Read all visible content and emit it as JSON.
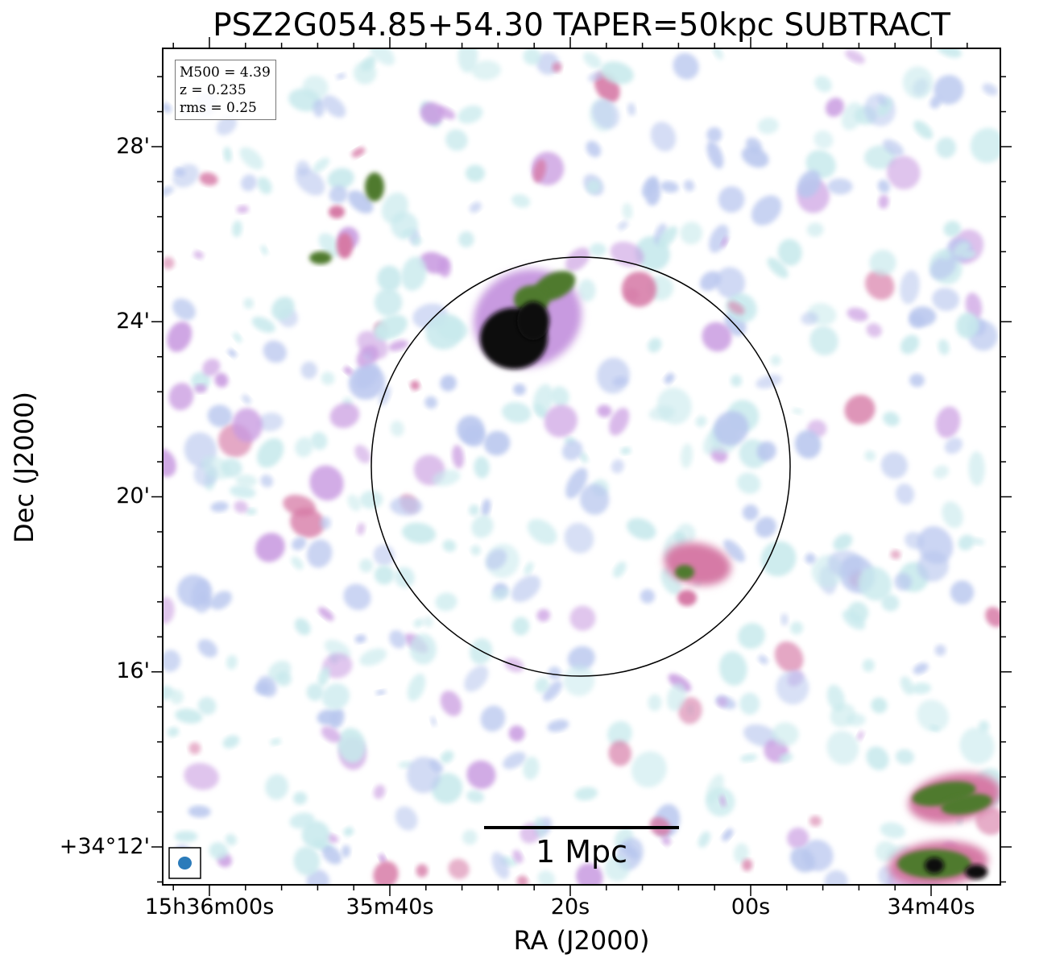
{
  "chart_data": {
    "type": "heatmap",
    "title": "PSZ2G054.85+54.30 TAPER=50kpc SUBTRACT",
    "xlabel": "RA (J2000)",
    "ylabel": "Dec (J2000)",
    "x_tick_labels": [
      "15h36m00s",
      "35m40s",
      "20s",
      "00s",
      "34m40s"
    ],
    "y_tick_labels": [
      "28'",
      "24'",
      "20'",
      "16'",
      "+34°12'"
    ],
    "annotation_box": [
      "M500 = 4.39",
      "z = 0.235",
      "rms = 0.25"
    ],
    "scale_bar_label": "1 Mpc",
    "colormap": [
      "#ffffff",
      "#c7e9ec",
      "#b8c6ee",
      "#c89ae0",
      "#d67aa6",
      "#4f7a2d",
      "#0a0a0a"
    ],
    "grid": false,
    "legend": "none",
    "overlays": [
      "r500 circle",
      "beam ellipse (bottom-left)",
      "scale bar"
    ],
    "sources": [
      {
        "name": "bright-compact-source",
        "ra": "15h35m25s",
        "dec": "+34°23.7'",
        "peak": "saturated"
      },
      {
        "name": "compact-source-south-east",
        "ra": "15h35m08s",
        "dec": "+34°18.3'",
        "peak": "moderate"
      },
      {
        "name": "extended-source-corner",
        "ra": "15h34m40s",
        "dec": "+34°11.8'",
        "peak": "saturated"
      }
    ]
  },
  "colors": {
    "circle": "#000000",
    "beam": "#2b7bba",
    "scalebar": "#000000"
  }
}
